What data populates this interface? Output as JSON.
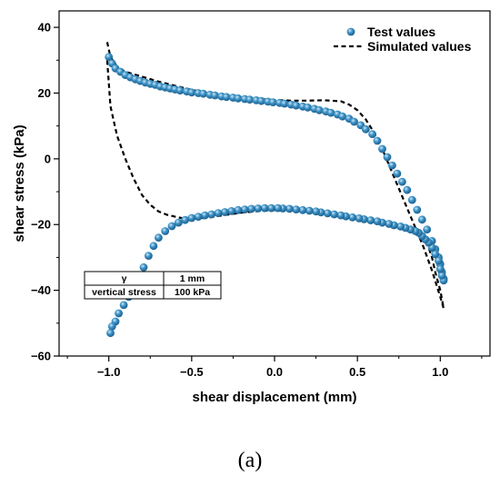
{
  "chart_data": {
    "type": "scatter",
    "xlabel": "shear displacement (mm)",
    "ylabel": "shear stress (kPa)",
    "xlim": [
      -1.3,
      1.3
    ],
    "ylim": [
      -60,
      45
    ],
    "xticks": [
      -1.0,
      -0.5,
      0.0,
      0.5,
      1.0
    ],
    "xtick_labels": [
      "−1.0",
      "−0.5",
      "0.0",
      "0.5",
      "1.0"
    ],
    "yticks": [
      -60,
      -40,
      -20,
      0,
      20,
      40
    ],
    "ytick_labels": [
      "−60",
      "−40",
      "−20",
      "0",
      "20",
      "40"
    ],
    "grid": false,
    "legend_position": "top-right",
    "series": [
      {
        "name": "Test values",
        "style": "markers",
        "color": "#2f7fb5",
        "x": [
          -1.0,
          -0.98,
          -0.96,
          -0.93,
          -0.9,
          -0.87,
          -0.84,
          -0.81,
          -0.78,
          -0.75,
          -0.72,
          -0.69,
          -0.66,
          -0.63,
          -0.6,
          -0.57,
          -0.53,
          -0.5,
          -0.46,
          -0.43,
          -0.39,
          -0.36,
          -0.32,
          -0.29,
          -0.25,
          -0.22,
          -0.18,
          -0.15,
          -0.11,
          -0.08,
          -0.04,
          -0.01,
          0.03,
          0.06,
          0.1,
          0.13,
          0.17,
          0.2,
          0.24,
          0.27,
          0.31,
          0.34,
          0.38,
          0.41,
          0.45,
          0.48,
          0.52,
          0.55,
          0.59,
          0.62,
          0.65,
          0.68,
          0.71,
          0.74,
          0.77,
          0.8,
          0.83,
          0.86,
          0.89,
          0.92,
          0.95,
          0.97,
          0.99,
          1.0,
          1.01,
          1.02,
          1.02,
          1.01,
          1.0,
          0.99,
          0.97,
          0.95,
          0.93,
          0.91,
          0.89,
          0.87,
          0.85,
          0.82,
          0.79,
          0.76,
          0.72,
          0.69,
          0.65,
          0.62,
          0.58,
          0.54,
          0.51,
          0.47,
          0.43,
          0.4,
          0.36,
          0.32,
          0.28,
          0.25,
          0.21,
          0.17,
          0.13,
          0.09,
          0.05,
          0.02,
          -0.02,
          -0.06,
          -0.1,
          -0.14,
          -0.18,
          -0.22,
          -0.26,
          -0.3,
          -0.34,
          -0.38,
          -0.42,
          -0.46,
          -0.5,
          -0.54,
          -0.58,
          -0.62,
          -0.66,
          -0.7,
          -0.73,
          -0.76,
          -0.79,
          -0.82,
          -0.85,
          -0.88,
          -0.91,
          -0.94,
          -0.96,
          -0.98,
          -0.99
        ],
        "y": [
          31.0,
          29.0,
          27.5,
          26.5,
          25.5,
          24.8,
          24.2,
          23.7,
          23.2,
          22.8,
          22.5,
          22.0,
          21.7,
          21.4,
          21.1,
          20.8,
          20.5,
          20.2,
          20.0,
          19.8,
          19.5,
          19.3,
          19.0,
          18.8,
          18.6,
          18.4,
          18.2,
          18.0,
          17.8,
          17.6,
          17.4,
          17.2,
          17.0,
          16.8,
          16.5,
          16.2,
          15.9,
          15.6,
          15.2,
          14.8,
          14.4,
          14.0,
          13.5,
          12.9,
          12.2,
          11.3,
          10.2,
          9.0,
          7.5,
          5.5,
          3.0,
          0.5,
          -2.0,
          -4.5,
          -7.0,
          -9.5,
          -12.5,
          -15.5,
          -18.5,
          -21.5,
          -25.0,
          -27.5,
          -30.0,
          -32.0,
          -34.5,
          -36.5,
          -37.0,
          -35.5,
          -33.5,
          -31.0,
          -29.0,
          -27.0,
          -25.5,
          -24.5,
          -23.5,
          -22.5,
          -22.0,
          -21.5,
          -21.0,
          -20.6,
          -20.2,
          -19.8,
          -19.4,
          -19.0,
          -18.7,
          -18.4,
          -18.1,
          -17.8,
          -17.5,
          -17.2,
          -16.9,
          -16.6,
          -16.3,
          -16.0,
          -15.8,
          -15.6,
          -15.4,
          -15.2,
          -15.1,
          -15.0,
          -15.0,
          -15.0,
          -15.1,
          -15.2,
          -15.4,
          -15.6,
          -15.9,
          -16.2,
          -16.5,
          -16.9,
          -17.2,
          -17.6,
          -18.0,
          -18.6,
          -19.4,
          -20.5,
          -22.0,
          -24.0,
          -26.5,
          -29.5,
          -33.0,
          -36.0,
          -39.0,
          -42.0,
          -44.5,
          -47.0,
          -49.5,
          -51.0,
          -53.0
        ]
      },
      {
        "name": "Simulated values",
        "style": "dashed-line",
        "color": "#000000",
        "x": [
          -1.01,
          -0.99,
          -0.95,
          -0.9,
          -0.8,
          -0.7,
          -0.6,
          -0.5,
          -0.4,
          -0.3,
          -0.2,
          -0.1,
          0.0,
          0.1,
          0.2,
          0.3,
          0.4,
          0.45,
          0.5,
          0.55,
          0.6,
          0.65,
          0.7,
          0.75,
          0.8,
          0.85,
          0.9,
          0.95,
          1.0,
          1.02,
          1.02,
          1.0,
          0.97,
          0.95,
          0.93,
          0.9,
          0.85,
          0.8,
          0.75,
          0.7,
          0.6,
          0.5,
          0.4,
          0.3,
          0.2,
          0.1,
          0.0,
          -0.1,
          -0.2,
          -0.3,
          -0.4,
          -0.45,
          -0.5,
          -0.55,
          -0.6,
          -0.65,
          -0.7,
          -0.75,
          -0.8,
          -0.85,
          -0.9,
          -0.95,
          -0.99,
          -1.01
        ],
        "y": [
          35.5,
          31.0,
          28.0,
          26.5,
          25.0,
          23.5,
          22.2,
          21.0,
          20.0,
          19.2,
          18.6,
          18.2,
          17.9,
          17.7,
          17.7,
          17.8,
          17.5,
          16.5,
          14.8,
          12.0,
          8.0,
          3.0,
          -3.0,
          -9.0,
          -15.0,
          -21.0,
          -27.0,
          -34.0,
          -42.0,
          -45.5,
          -45.5,
          -40.0,
          -34.5,
          -30.0,
          -27.0,
          -24.0,
          -21.7,
          -20.7,
          -20.1,
          -19.6,
          -18.7,
          -17.9,
          -17.1,
          -16.5,
          -16.0,
          -15.7,
          -15.6,
          -15.9,
          -16.4,
          -17.1,
          -17.9,
          -18.1,
          -18.3,
          -18.1,
          -17.6,
          -17.0,
          -16.0,
          -14.0,
          -11.0,
          -6.0,
          0.0,
          7.0,
          16.0,
          30.0
        ]
      }
    ],
    "parameter_table": [
      [
        "γ",
        "1 mm"
      ],
      [
        "vertical stress",
        "100 kPa"
      ]
    ]
  },
  "caption": "(a)"
}
